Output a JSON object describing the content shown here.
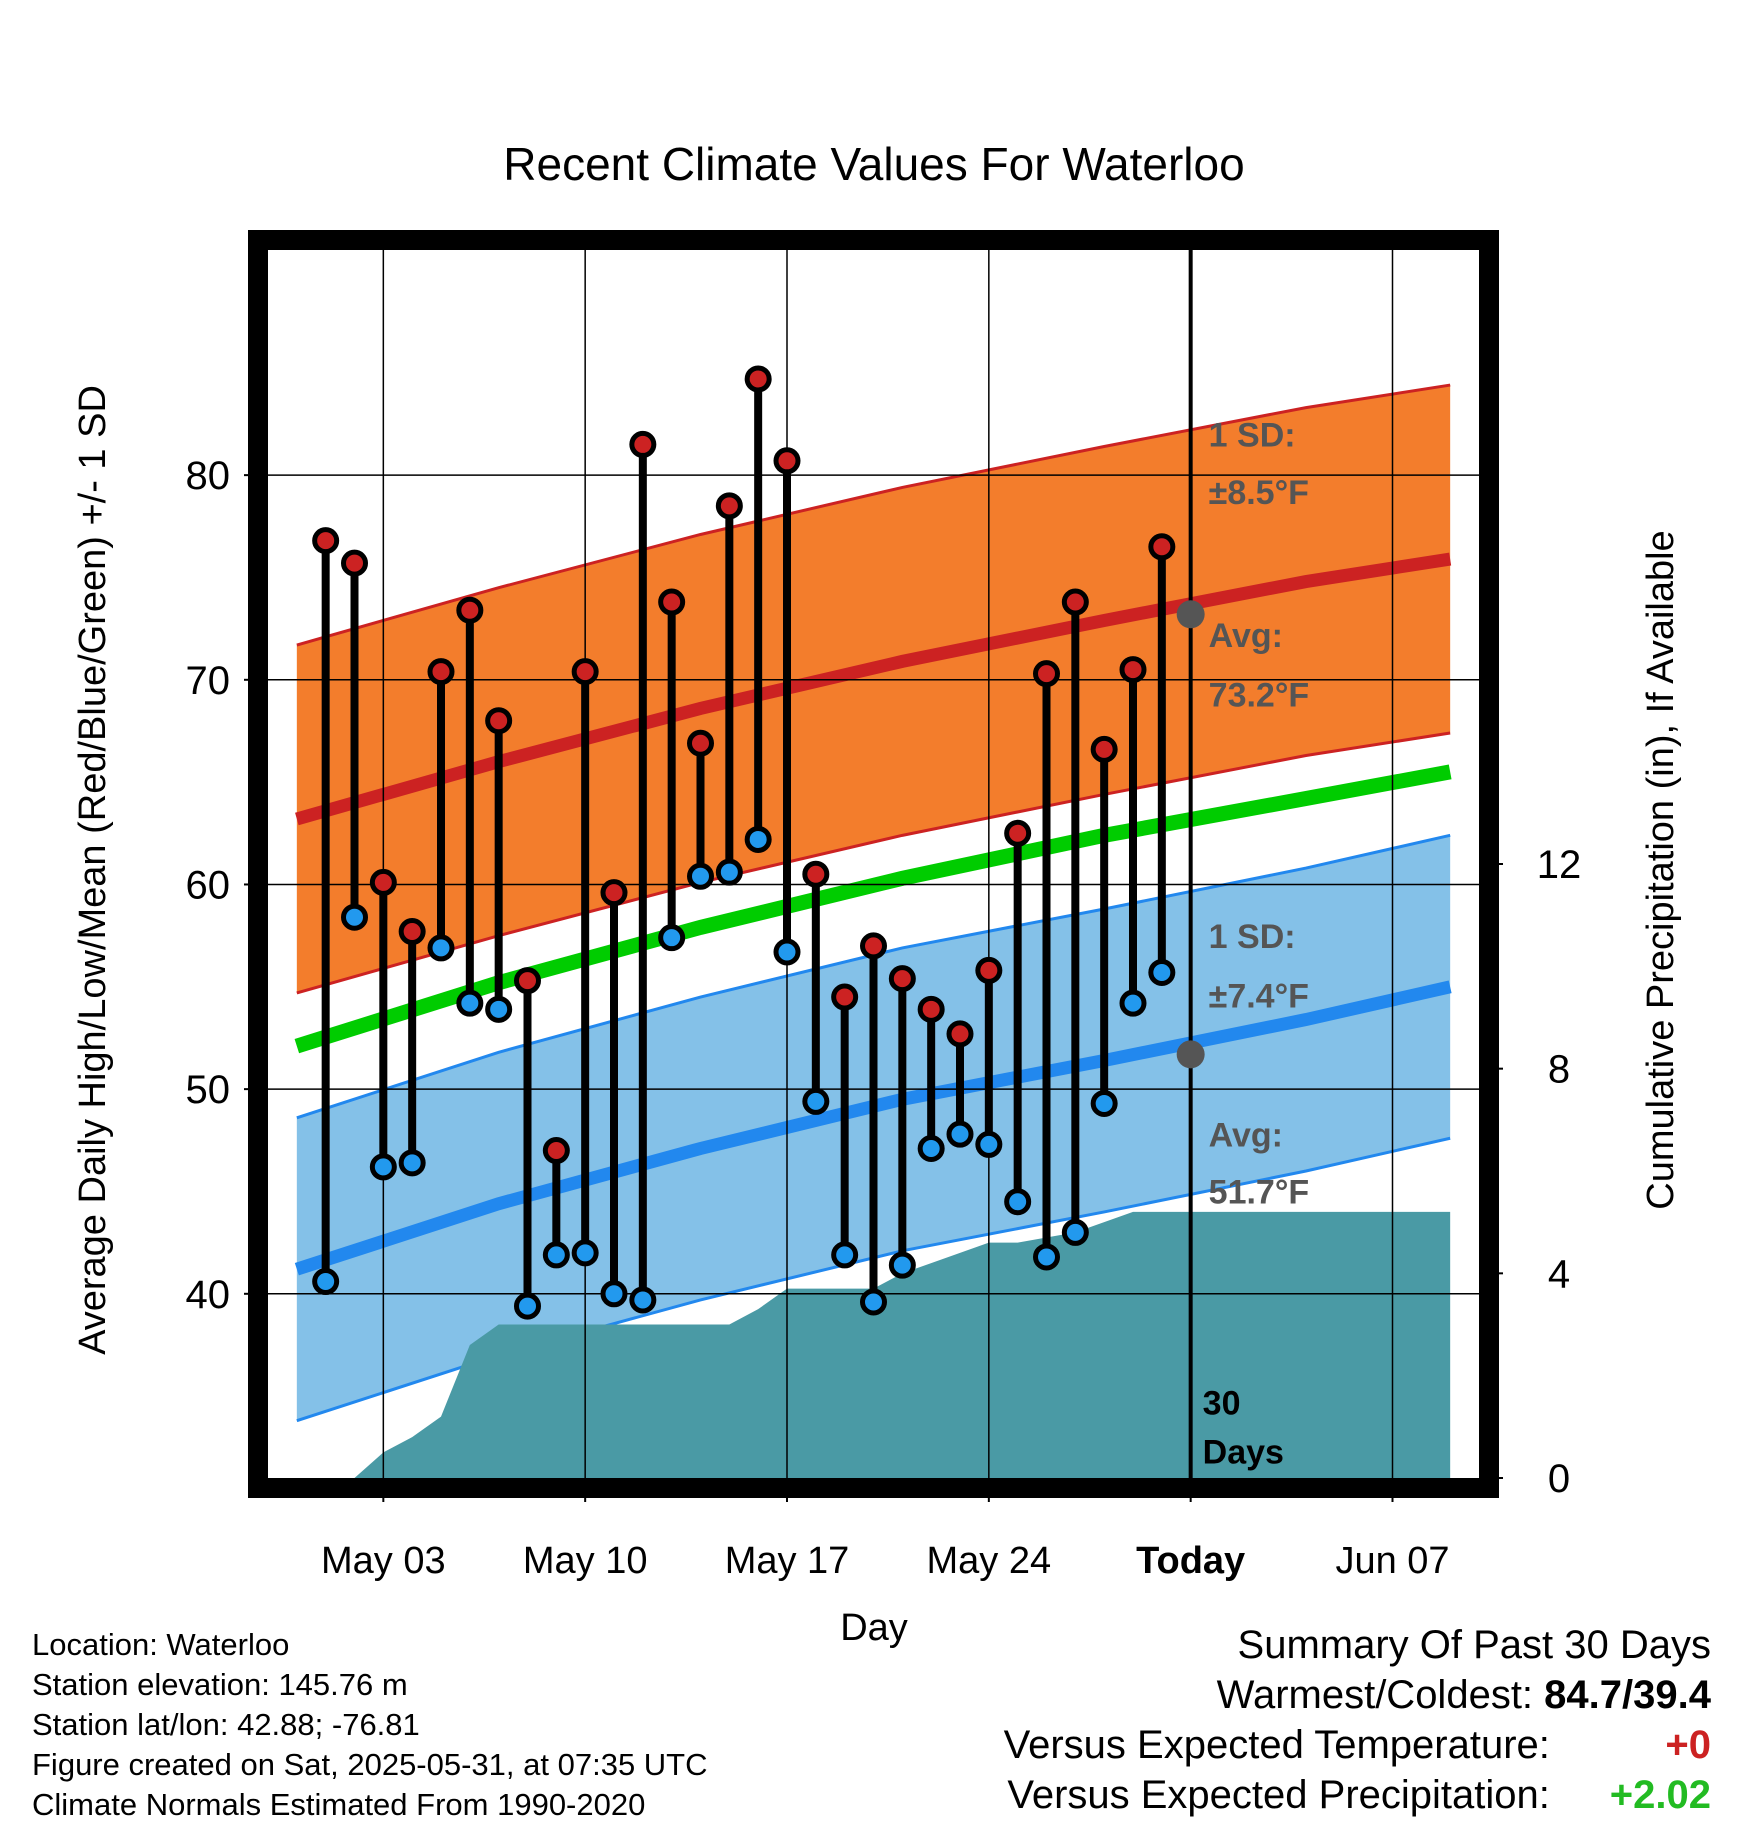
{
  "chart_data": {
    "type": "line",
    "title": "Recent Climate Values For Waterloo",
    "xlabel": "Day",
    "ylabel": "Average Daily High/Low/Mean (Red/Blue/Green) +/- 1 SD",
    "y2label": "Cumulative Precipitation (in), If Available",
    "ylim": [
      31,
      91
    ],
    "y2lim": [
      0,
      24
    ],
    "xlim": [
      "Apr 29",
      "Jun 10"
    ],
    "x_ticks": [
      "May 03",
      "May 10",
      "May 17",
      "May 24",
      "Today",
      "Jun 07"
    ],
    "y_ticks": [
      40,
      50,
      60,
      70,
      80
    ],
    "y2_ticks": [
      0,
      4,
      8,
      12
    ],
    "grid": true,
    "today": "May 31",
    "period_label": [
      "30",
      "Days"
    ],
    "days": [
      "May 01",
      "May 02",
      "May 03",
      "May 04",
      "May 05",
      "May 06",
      "May 07",
      "May 08",
      "May 09",
      "May 10",
      "May 11",
      "May 12",
      "May 13",
      "May 14",
      "May 15",
      "May 16",
      "May 17",
      "May 18",
      "May 19",
      "May 20",
      "May 21",
      "May 22",
      "May 23",
      "May 24",
      "May 25",
      "May 26",
      "May 27",
      "May 28",
      "May 29",
      "May 30"
    ],
    "series": [
      {
        "name": "Observed High",
        "color": "#cc2222",
        "values": [
          76.8,
          75.7,
          60.1,
          57.7,
          70.4,
          73.4,
          68.0,
          55.3,
          47.0,
          70.4,
          59.6,
          81.5,
          73.8,
          66.9,
          78.5,
          84.7,
          80.7,
          60.5,
          54.5,
          57.0,
          55.4,
          53.9,
          52.7,
          55.8,
          62.5,
          70.3,
          73.8,
          66.6,
          70.5,
          76.5
        ]
      },
      {
        "name": "Observed Low",
        "color": "#2299ee",
        "values": [
          40.6,
          58.4,
          46.2,
          46.4,
          56.9,
          54.2,
          53.9,
          39.4,
          41.9,
          42.0,
          40.0,
          39.7,
          57.4,
          60.4,
          60.6,
          62.2,
          56.7,
          49.4,
          41.9,
          39.6,
          41.4,
          47.1,
          47.8,
          47.3,
          44.5,
          41.8,
          43.0,
          49.3,
          54.2,
          55.7
        ]
      },
      {
        "name": "Normal High",
        "color": "#cc2222",
        "x": [
          "Apr 30",
          "May 07",
          "May 14",
          "May 21",
          "May 28",
          "Jun 04",
          "Jun 09"
        ],
        "values": [
          63.2,
          66.0,
          68.6,
          70.9,
          72.9,
          74.8,
          75.9
        ],
        "sd": 8.5
      },
      {
        "name": "Normal Mean",
        "color": "#00cc00",
        "x": [
          "Apr 30",
          "May 07",
          "May 14",
          "May 21",
          "May 28",
          "Jun 04",
          "Jun 09"
        ],
        "values": [
          52.1,
          55.2,
          57.9,
          60.3,
          62.4,
          64.2,
          65.5
        ]
      },
      {
        "name": "Normal Low",
        "color": "#2288ee",
        "x": [
          "Apr 30",
          "May 07",
          "May 14",
          "May 21",
          "May 28",
          "Jun 04",
          "Jun 09"
        ],
        "values": [
          41.2,
          44.4,
          47.1,
          49.5,
          51.4,
          53.4,
          55.0
        ],
        "sd": 7.4
      },
      {
        "name": "Cumulative Precipitation",
        "color": "#4a9aa5",
        "axis": "right",
        "x": [
          "May 01",
          "May 02",
          "May 03",
          "May 04",
          "May 05",
          "May 06",
          "May 07",
          "May 08",
          "May 09",
          "May 10",
          "May 11",
          "May 12",
          "May 13",
          "May 14",
          "May 15",
          "May 16",
          "May 17",
          "May 18",
          "May 19",
          "May 20",
          "May 21",
          "May 22",
          "May 23",
          "May 24",
          "May 25",
          "May 26",
          "May 27",
          "May 28",
          "May 29",
          "May 30",
          "May 31",
          "Jun 09"
        ],
        "values": [
          0,
          0,
          0.5,
          0.8,
          1.2,
          2.6,
          3.0,
          3.0,
          3.0,
          3.0,
          3.0,
          3.0,
          3.0,
          3.0,
          3.0,
          3.3,
          3.7,
          3.7,
          3.7,
          3.7,
          4.0,
          4.2,
          4.4,
          4.6,
          4.6,
          4.7,
          4.8,
          5.0,
          5.2,
          5.2,
          5.2,
          5.2
        ]
      }
    ],
    "annotations": {
      "high_sd_title": "1 SD:",
      "high_sd_value": "±8.5°F",
      "high_avg_title": "Avg:",
      "high_avg_value": "73.2°F",
      "high_avg": 73.2,
      "low_sd_title": "1 SD:",
      "low_sd_value": "±7.4°F",
      "low_avg_title": "Avg:",
      "low_avg_value": "51.7°F",
      "low_avg": 51.7
    }
  },
  "info": {
    "location": "Location: Waterloo",
    "elevation": "Station elevation: 145.76 m",
    "latlon": "Station lat/lon: 42.88; -76.81",
    "created": "Figure created on Sat, 2025-05-31, at 07:35 UTC",
    "normals": "Climate Normals Estimated From 1990-2020"
  },
  "summary": {
    "title": "Summary Of Past 30 Days",
    "warm_cold_label": "Warmest/Coldest:",
    "warm_cold_value": "84.7/39.4",
    "temp_label": "Versus Expected Temperature:",
    "temp_value": "+0",
    "temp_color": "#cc2222",
    "precip_label": "Versus Expected Precipitation:",
    "precip_value": "+2.02",
    "precip_color": "#22bb22"
  }
}
